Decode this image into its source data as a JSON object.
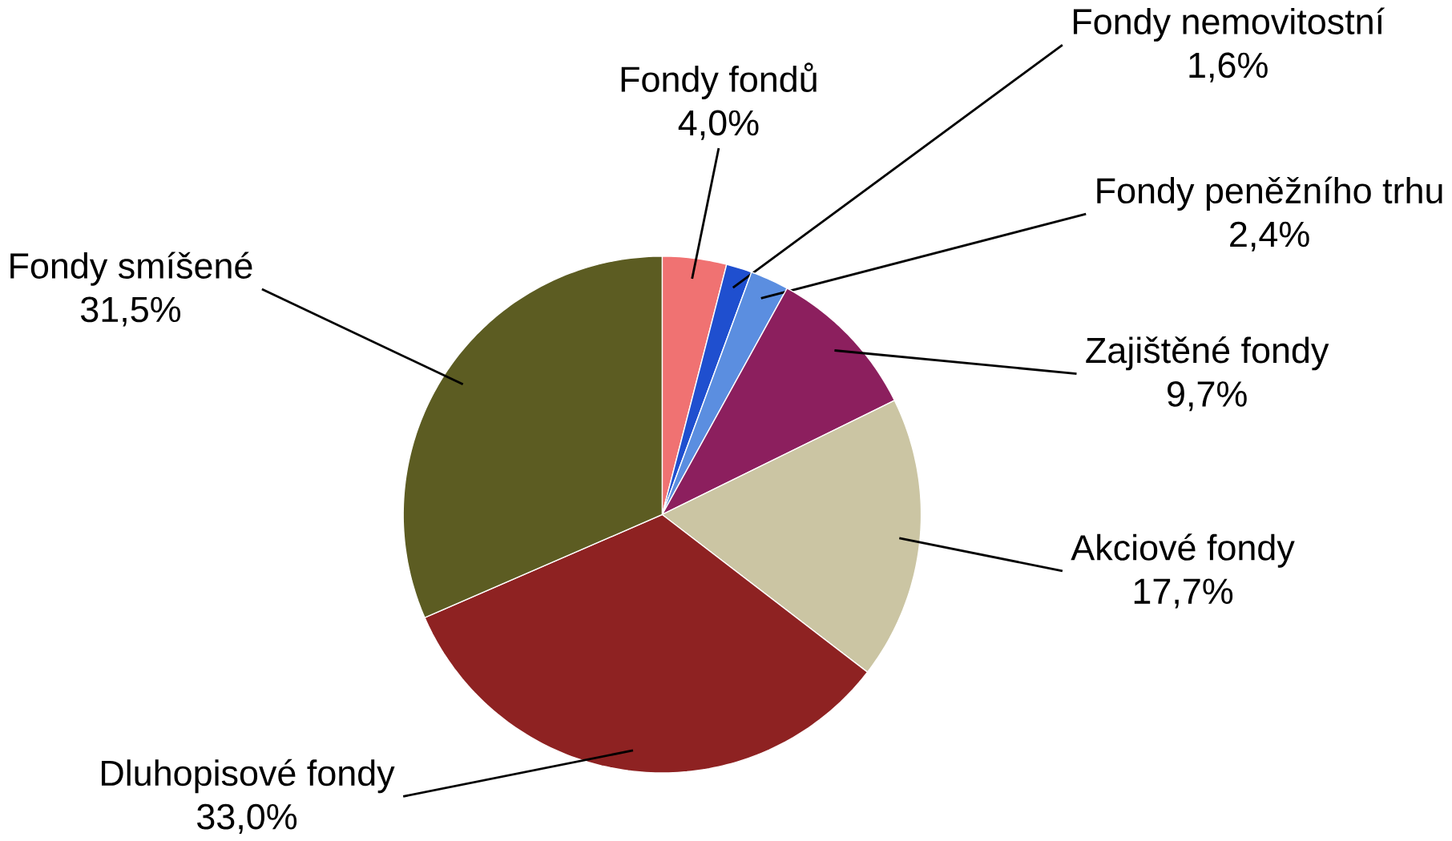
{
  "chart_data": {
    "type": "pie",
    "categories": [
      "Fondy fondů",
      "Fondy nemovitostní",
      "Fondy peněžního trhu",
      "Zajištěné fondy",
      "Akciové fondy",
      "Dluhopisové fondy",
      "Fondy smíšené"
    ],
    "values": [
      4.0,
      1.6,
      2.4,
      9.7,
      17.7,
      33.0,
      31.5
    ],
    "value_labels": [
      "4,0%",
      "1,6%",
      "2,4%",
      "9,7%",
      "17,7%",
      "33,0%",
      "31,5%"
    ],
    "colors": [
      "#f07272",
      "#1f4fcf",
      "#5b8ee0",
      "#8c1f5e",
      "#cbc5a3",
      "#8e2222",
      "#5c5c22"
    ]
  }
}
